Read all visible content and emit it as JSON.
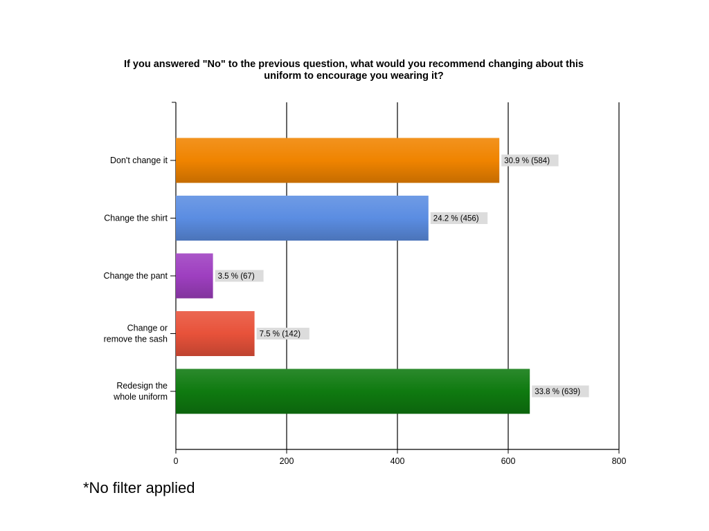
{
  "chart_data": {
    "type": "bar",
    "orientation": "horizontal",
    "title": "If you answered \"No\" to the previous question, what would you recommend changing about this uniform to encourage you wearing it?",
    "title_lines": [
      "If you answered \"No\" to the previous question, what would you recommend changing about this",
      "uniform to encourage you wearing it?"
    ],
    "categories": [
      {
        "lines": [
          "Don't change it"
        ]
      },
      {
        "lines": [
          "Change the shirt"
        ]
      },
      {
        "lines": [
          "Change the pant"
        ]
      },
      {
        "lines": [
          "Change or",
          "remove the sash"
        ]
      },
      {
        "lines": [
          "Redesign the",
          "whole uniform"
        ]
      }
    ],
    "values": [
      584,
      456,
      67,
      142,
      639
    ],
    "data_labels": [
      "30.9 % (584)",
      "24.2 % (456)",
      "3.5 % (67)",
      "7.5 % (142)",
      "33.8 % (639)"
    ],
    "colors": [
      "#f08400",
      "#5b8de2",
      "#9e3fc0",
      "#e8523a",
      "#0f7a10"
    ],
    "xlim": [
      0,
      800
    ],
    "xticks": [
      0,
      200,
      400,
      600,
      800
    ],
    "xlabel": "",
    "ylabel": "",
    "grid": true
  },
  "footnote": "*No filter applied"
}
